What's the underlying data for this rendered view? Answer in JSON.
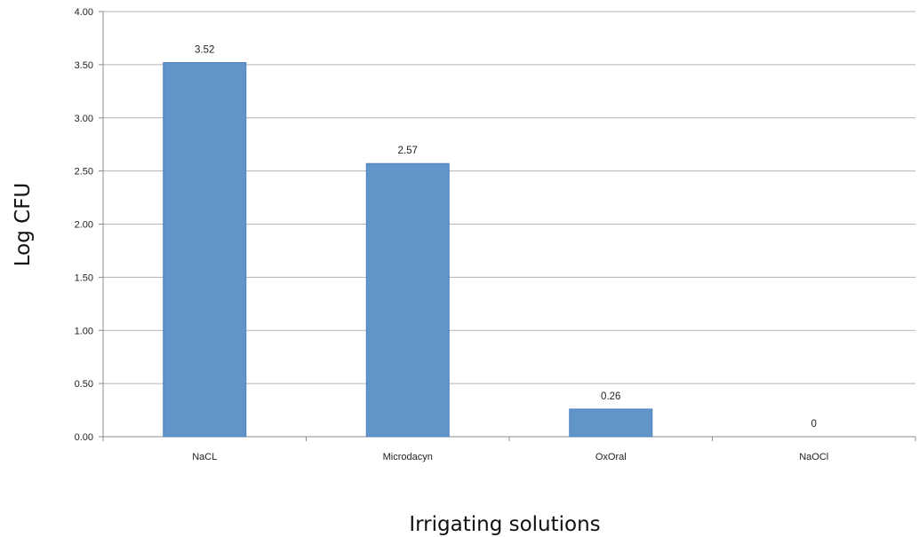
{
  "chart_data": {
    "type": "bar",
    "title": "",
    "xlabel": "Irrigating solutions",
    "ylabel": "Log CFU",
    "categories": [
      "NaCL",
      "Microdacyn",
      "OxOral",
      "NaOCl"
    ],
    "values": [
      3.52,
      2.57,
      0.26,
      0
    ],
    "data_labels": [
      "3.52",
      "2.57",
      "0.26",
      "0"
    ],
    "ylim": [
      0,
      4
    ],
    "yticks": [
      0,
      0.5,
      1,
      1.5,
      2,
      2.5,
      3,
      3.5,
      4
    ],
    "ytick_labels": [
      "0.00",
      "0.50",
      "1.00",
      "1.50",
      "2.00",
      "2.50",
      "3.00",
      "3.50",
      "4.00"
    ],
    "grid": true,
    "legend": "none",
    "bar_color": "#6194c9",
    "bar_border_color": "#4f81bd",
    "gridline_color": "#b3b3b3"
  }
}
